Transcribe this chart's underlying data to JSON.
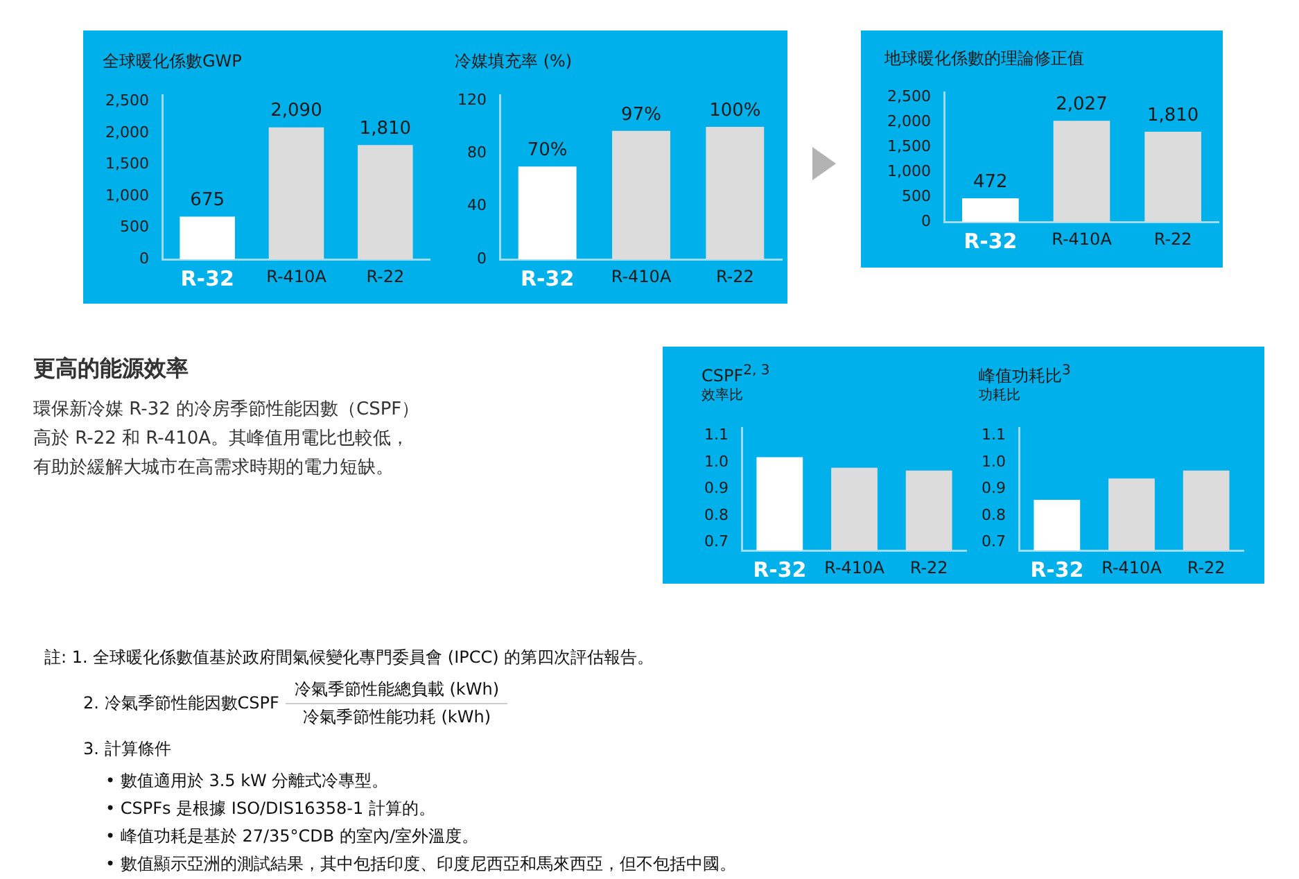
{
  "chart_data": [
    {
      "type": "bar",
      "title": "全球暖化係數GWP",
      "categories": [
        "R-32",
        "R-410A",
        "R-22"
      ],
      "values": [
        675,
        2090,
        1810
      ],
      "colors": [
        "#ffffff",
        "#dcdcdc",
        "#dcdcdc"
      ],
      "value_labels": [
        "675",
        "2,090",
        "1,810"
      ],
      "ylim": [
        0,
        2600
      ],
      "yticks": [
        0,
        500,
        {
          "value": 1000,
          "label": "1,000"
        },
        {
          "value": 1500,
          "label": "1,500"
        },
        {
          "value": 2000,
          "label": "2,000"
        },
        {
          "value": 2500,
          "label": "2,500"
        }
      ]
    },
    {
      "type": "bar",
      "title": "冷媒填充率 (%)",
      "categories": [
        "R-32",
        "R-410A",
        "R-22"
      ],
      "values": [
        70,
        97,
        100
      ],
      "colors": [
        "#ffffff",
        "#dcdcdc",
        "#dcdcdc"
      ],
      "value_labels": [
        "70%",
        "97%",
        "100%"
      ],
      "ylim": [
        0,
        124
      ],
      "yticks": [
        0,
        40,
        80,
        120
      ]
    },
    {
      "type": "bar",
      "title": "地球暖化係數的理論修正值",
      "categories": [
        "R-32",
        "R-410A",
        "R-22"
      ],
      "values": [
        472,
        2027,
        1810
      ],
      "colors": [
        "#ffffff",
        "#dcdcdc",
        "#dcdcdc"
      ],
      "value_labels": [
        "472",
        "2,027",
        "1,810"
      ],
      "ylim": [
        0,
        2600
      ],
      "yticks": [
        0,
        500,
        {
          "value": 1000,
          "label": "1,000"
        },
        {
          "value": 1500,
          "label": "1,500"
        },
        {
          "value": 2000,
          "label": "2,000"
        },
        {
          "value": 2500,
          "label": "2,500"
        }
      ]
    },
    {
      "type": "bar",
      "title": "CSPF$^{2, 3}$",
      "subtitle": "效率比",
      "categories": [
        "R-32",
        "R-410A",
        "R-22"
      ],
      "values": [
        1.02,
        0.98,
        0.97
      ],
      "colors": [
        "#ffffff",
        "#dcdcdc",
        "#dcdcdc"
      ],
      "ylim": [
        0.67,
        1.13
      ],
      "yticks": [
        {
          "value": 0.7,
          "label": "0.7"
        },
        {
          "value": 0.8,
          "label": "0.8"
        },
        {
          "value": 0.9,
          "label": "0.9"
        },
        {
          "value": 1,
          "label": "1.0"
        },
        {
          "value": 1.1,
          "label": "1.1"
        }
      ]
    },
    {
      "type": "bar",
      "title": "峰值功耗比$^{3}$",
      "subtitle": "功耗比",
      "categories": [
        "R-32",
        "R-410A",
        "R-22"
      ],
      "values": [
        0.86,
        0.94,
        0.97
      ],
      "colors": [
        "#ffffff",
        "#dcdcdc",
        "#dcdcdc"
      ],
      "ylim": [
        0.67,
        1.13
      ],
      "yticks": [
        {
          "value": 0.7,
          "label": "0.7"
        },
        {
          "value": 0.8,
          "label": "0.8"
        },
        {
          "value": 0.9,
          "label": "0.9"
        },
        {
          "value": 1,
          "label": "1.0"
        },
        {
          "value": 1.1,
          "label": "1.1"
        }
      ]
    },
    {
      "type": "other",
      "title": "更高的能源效率",
      "annotations": [
        "環保新冷媒 R-32 的冷房季節性能因數（CSPF）",
        "高於 R-22 和 R-410A。其峰值用電比也較低，",
        "有助於緩解大城市在高需求時期的電力短缺。"
      ]
    },
    {
      "type": "other",
      "annotations": [
        "註: 1. 全球暖化係數值基於政府間氣候變化專門委員會 (IPCC) 的第四次評估報告。",
        "2. 冷氣季節性能因數CSPF",
        "冷氣季節性能總負載 (kWh)",
        "冷氣季節性能功耗 (kWh)",
        "3. 計算條件",
        "• 數值適用於 3.5 kW 分離式冷專型。",
        "• CSPFs 是根據 ISO/DIS16358-1 計算的。",
        "• 峰值功耗是基於 27/35°CDB 的室內/室外溫度。",
        "• 數值顯示亞洲的測試結果，其中包括印度、印度尼西亞和馬來西亞，但不包括中國。"
      ]
    }
  ]
}
